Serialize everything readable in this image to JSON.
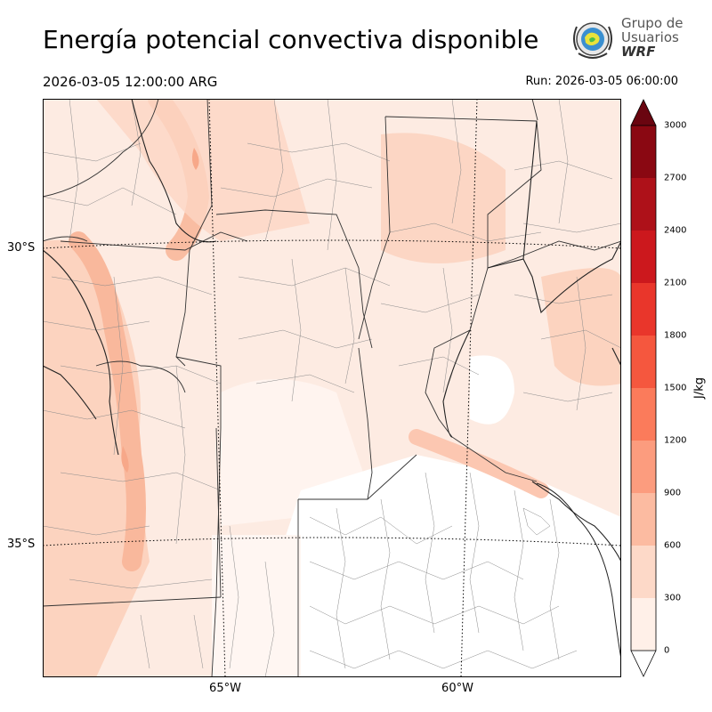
{
  "title": "Energía potencial convectiva disponible",
  "valid_time": "2026-03-05 12:00:00 ARG",
  "run_time": "Run: 2026-03-05 06:00:00",
  "logo": {
    "line1": "Grupo de",
    "line2": "Usuarios",
    "line3": "WRF",
    "icon": "wrf-globe-emblem-icon"
  },
  "map": {
    "lat_labels": [
      "30°S",
      "35°S"
    ],
    "lon_labels": [
      "65°W",
      "60°W"
    ],
    "gridline_style": "dotted"
  },
  "colorbar": {
    "unit": "J/kg",
    "ticks": [
      "0",
      "300",
      "600",
      "900",
      "1200",
      "1500",
      "1800",
      "2100",
      "2400",
      "2700",
      "3000"
    ],
    "colors": [
      "#fff0e8",
      "#fdd9c8",
      "#fcbba1",
      "#fc9c7e",
      "#fb7b5b",
      "#f5573e",
      "#e9362b",
      "#cc181d",
      "#ae1119",
      "#8a0812"
    ],
    "extend": "both"
  }
}
